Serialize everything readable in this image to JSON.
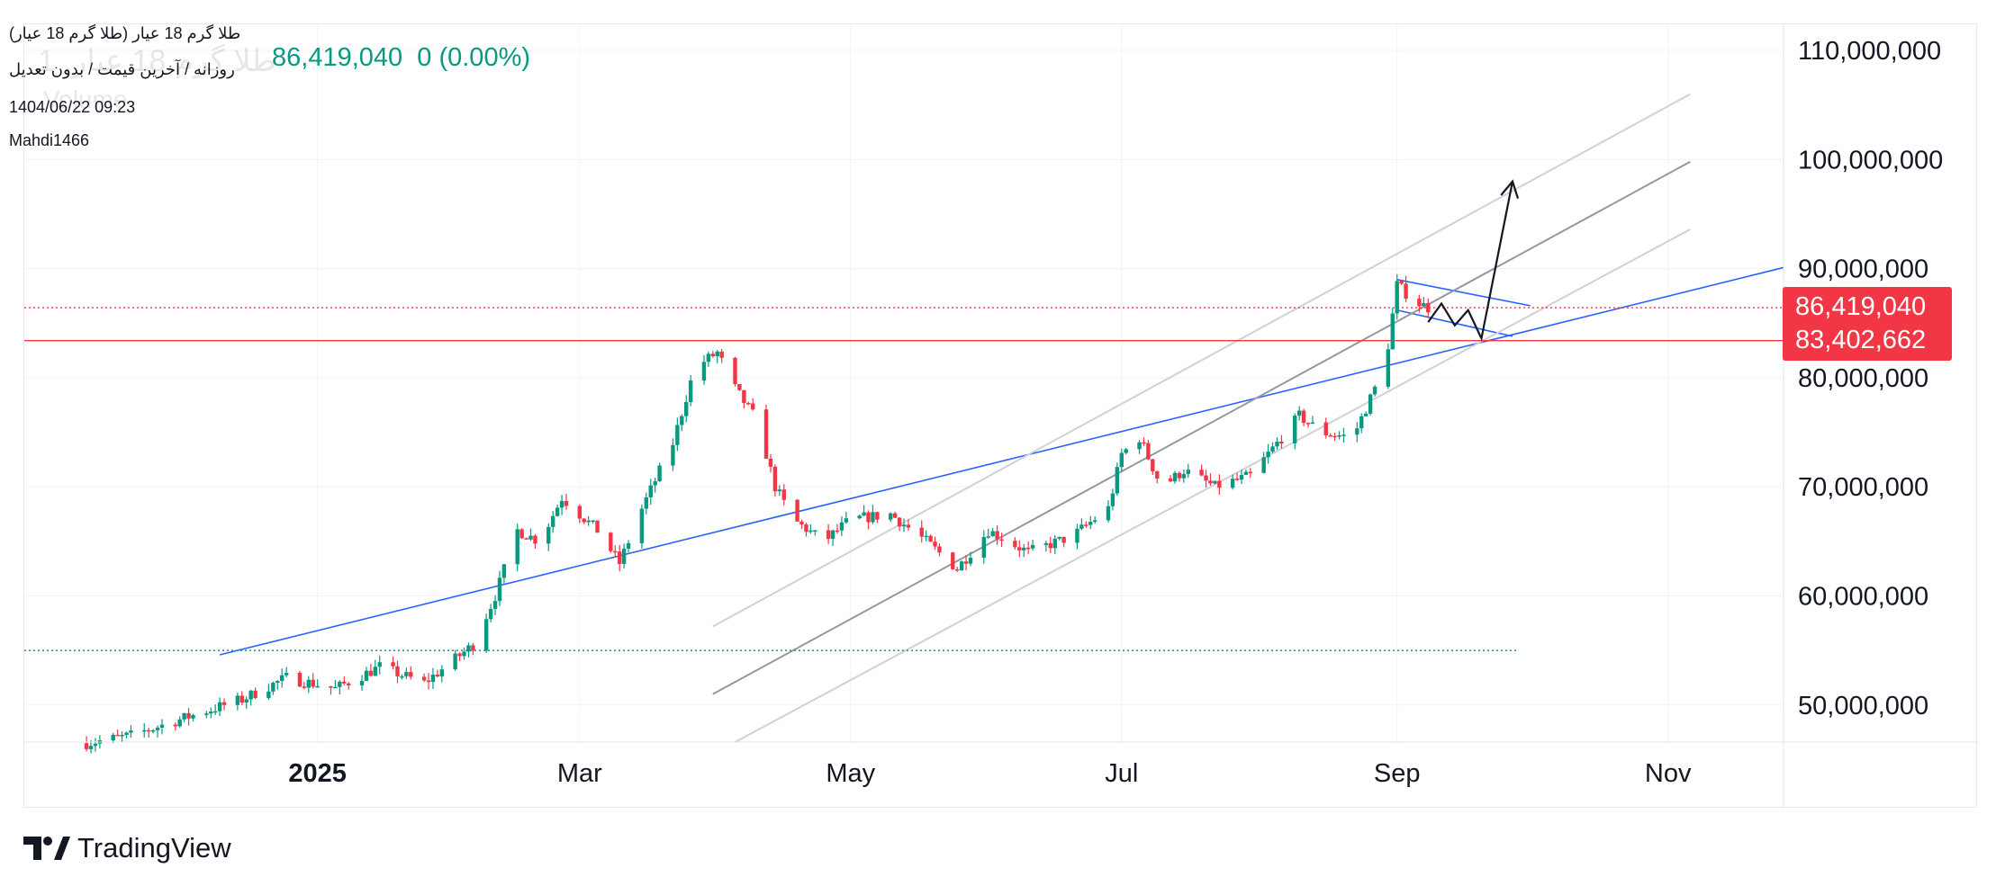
{
  "legend": {
    "title": "طلا گرم 18 عیار (طلا گرم 18 عیار)",
    "subtitle": "روزانه / آخرین قیمت / بدون تعدیل",
    "last_price": "86,419,040",
    "change": "0 (0.00%)",
    "date": "1404/06/22 09:23",
    "author": "Mahdi1466",
    "ghost_symbol": "طلا گرم 18 عیار, 1",
    "ghost_volume": "Volume"
  },
  "brand": {
    "name": "TradingView"
  },
  "colors": {
    "up": "#089981",
    "down": "#f23645",
    "trend": "#2962ff",
    "channel_mid": "#9598a1",
    "channel_edge": "#cfd1d6",
    "resistance": "#f23645"
  },
  "chart_data": {
    "type": "candlestick",
    "title": "طلا گرم 18 عیار (طلا گرم 18 عیار)",
    "interval": "روزانه",
    "x_ticks": [
      "2025",
      "Mar",
      "May",
      "Jul",
      "Sep",
      "Nov"
    ],
    "x_tick_dates": [
      "2025-01-01",
      "2025-03-01",
      "2025-05-01",
      "2025-07-01",
      "2025-09-01",
      "2025-11-01"
    ],
    "y_ticks": [
      50000000,
      60000000,
      70000000,
      80000000,
      90000000,
      100000000,
      110000000
    ],
    "y_tick_labels": [
      "50,000,000",
      "60,000,000",
      "70,000,000",
      "80,000,000",
      "90,000,000",
      "100,000,000",
      "110,000,000"
    ],
    "ylim": [
      46600000,
      112400000
    ],
    "xlim": [
      "2024-10-27",
      "2025-11-27"
    ],
    "grid": true,
    "price_labels": [
      {
        "label": "86,419,040",
        "value": 86419040
      },
      {
        "label": "83,402,662",
        "value": 83402662
      }
    ],
    "hlines": [
      {
        "value": 86419040,
        "style": "dotted",
        "color": "#f23645"
      },
      {
        "value": 83402662,
        "style": "solid",
        "color": "#f23645"
      },
      {
        "value": 55000000,
        "style": "dotted",
        "color": "#089981",
        "from": "2024-10-27",
        "to": "2025-09-28"
      }
    ],
    "trendlines": [
      {
        "name": "support",
        "color": "#2962ff",
        "p1": [
          "2024-12-10",
          54600000
        ],
        "p2": [
          "2025-11-27",
          90100000
        ]
      },
      {
        "name": "wedge-top",
        "color": "#2962ff",
        "p1": [
          "2025-09-01",
          89000000
        ],
        "p2": [
          "2025-10-01",
          86600000
        ]
      },
      {
        "name": "wedge-bottom",
        "color": "#2962ff",
        "p1": [
          "2025-09-01",
          86200000
        ],
        "p2": [
          "2025-09-27",
          83800000
        ]
      },
      {
        "name": "channel-upper",
        "color": "#cfd1d6",
        "p1": [
          "2025-03-31",
          57200000
        ],
        "p2": [
          "2025-11-06",
          106000000
        ]
      },
      {
        "name": "channel-middle",
        "color": "#9598a1",
        "p1": [
          "2025-03-31",
          51000000
        ],
        "p2": [
          "2025-11-06",
          99800000
        ]
      },
      {
        "name": "channel-lower",
        "color": "#cfd1d6",
        "p1": [
          "2025-04-05",
          46600000
        ],
        "p2": [
          "2025-11-06",
          93600000
        ]
      }
    ],
    "projection": [
      [
        "2025-09-08",
        85100000
      ],
      [
        "2025-09-11",
        86800000
      ],
      [
        "2025-09-14",
        84800000
      ],
      [
        "2025-09-17",
        86200000
      ],
      [
        "2025-09-20",
        83600000
      ],
      [
        "2025-09-27",
        98000000
      ]
    ],
    "anchors": [
      [
        "2024-11-10",
        46500000
      ],
      [
        "2024-11-20",
        47200000
      ],
      [
        "2024-12-05",
        49200000
      ],
      [
        "2024-12-15",
        50500000
      ],
      [
        "2024-12-25",
        52500000
      ],
      [
        "2025-01-05",
        51500000
      ],
      [
        "2025-01-15",
        53500000
      ],
      [
        "2025-01-25",
        52000000
      ],
      [
        "2025-02-05",
        55500000
      ],
      [
        "2025-02-10",
        60000000
      ],
      [
        "2025-02-15",
        66000000
      ],
      [
        "2025-02-20",
        65000000
      ],
      [
        "2025-02-25",
        69000000
      ],
      [
        "2025-03-05",
        66000000
      ],
      [
        "2025-03-10",
        63000000
      ],
      [
        "2025-03-15",
        68000000
      ],
      [
        "2025-03-22",
        74000000
      ],
      [
        "2025-03-27",
        81000000
      ],
      [
        "2025-04-01",
        82300000
      ],
      [
        "2025-04-05",
        79000000
      ],
      [
        "2025-04-10",
        76000000
      ],
      [
        "2025-04-14",
        70000000
      ],
      [
        "2025-04-18",
        67000000
      ],
      [
        "2025-04-25",
        65000000
      ],
      [
        "2025-05-01",
        67000000
      ],
      [
        "2025-05-10",
        67500000
      ],
      [
        "2025-05-18",
        65000000
      ],
      [
        "2025-05-25",
        62500000
      ],
      [
        "2025-06-01",
        66000000
      ],
      [
        "2025-06-10",
        64000000
      ],
      [
        "2025-06-20",
        65500000
      ],
      [
        "2025-06-28",
        68000000
      ],
      [
        "2025-07-01",
        73000000
      ],
      [
        "2025-07-05",
        74500000
      ],
      [
        "2025-07-10",
        70000000
      ],
      [
        "2025-07-15",
        71500000
      ],
      [
        "2025-07-22",
        70000000
      ],
      [
        "2025-07-30",
        71000000
      ],
      [
        "2025-08-05",
        74000000
      ],
      [
        "2025-08-10",
        76500000
      ],
      [
        "2025-08-15",
        75000000
      ],
      [
        "2025-08-22",
        74500000
      ],
      [
        "2025-08-27",
        79000000
      ],
      [
        "2025-08-30",
        83000000
      ],
      [
        "2025-09-01",
        88500000
      ],
      [
        "2025-09-05",
        87000000
      ],
      [
        "2025-09-08",
        86419040
      ]
    ]
  }
}
